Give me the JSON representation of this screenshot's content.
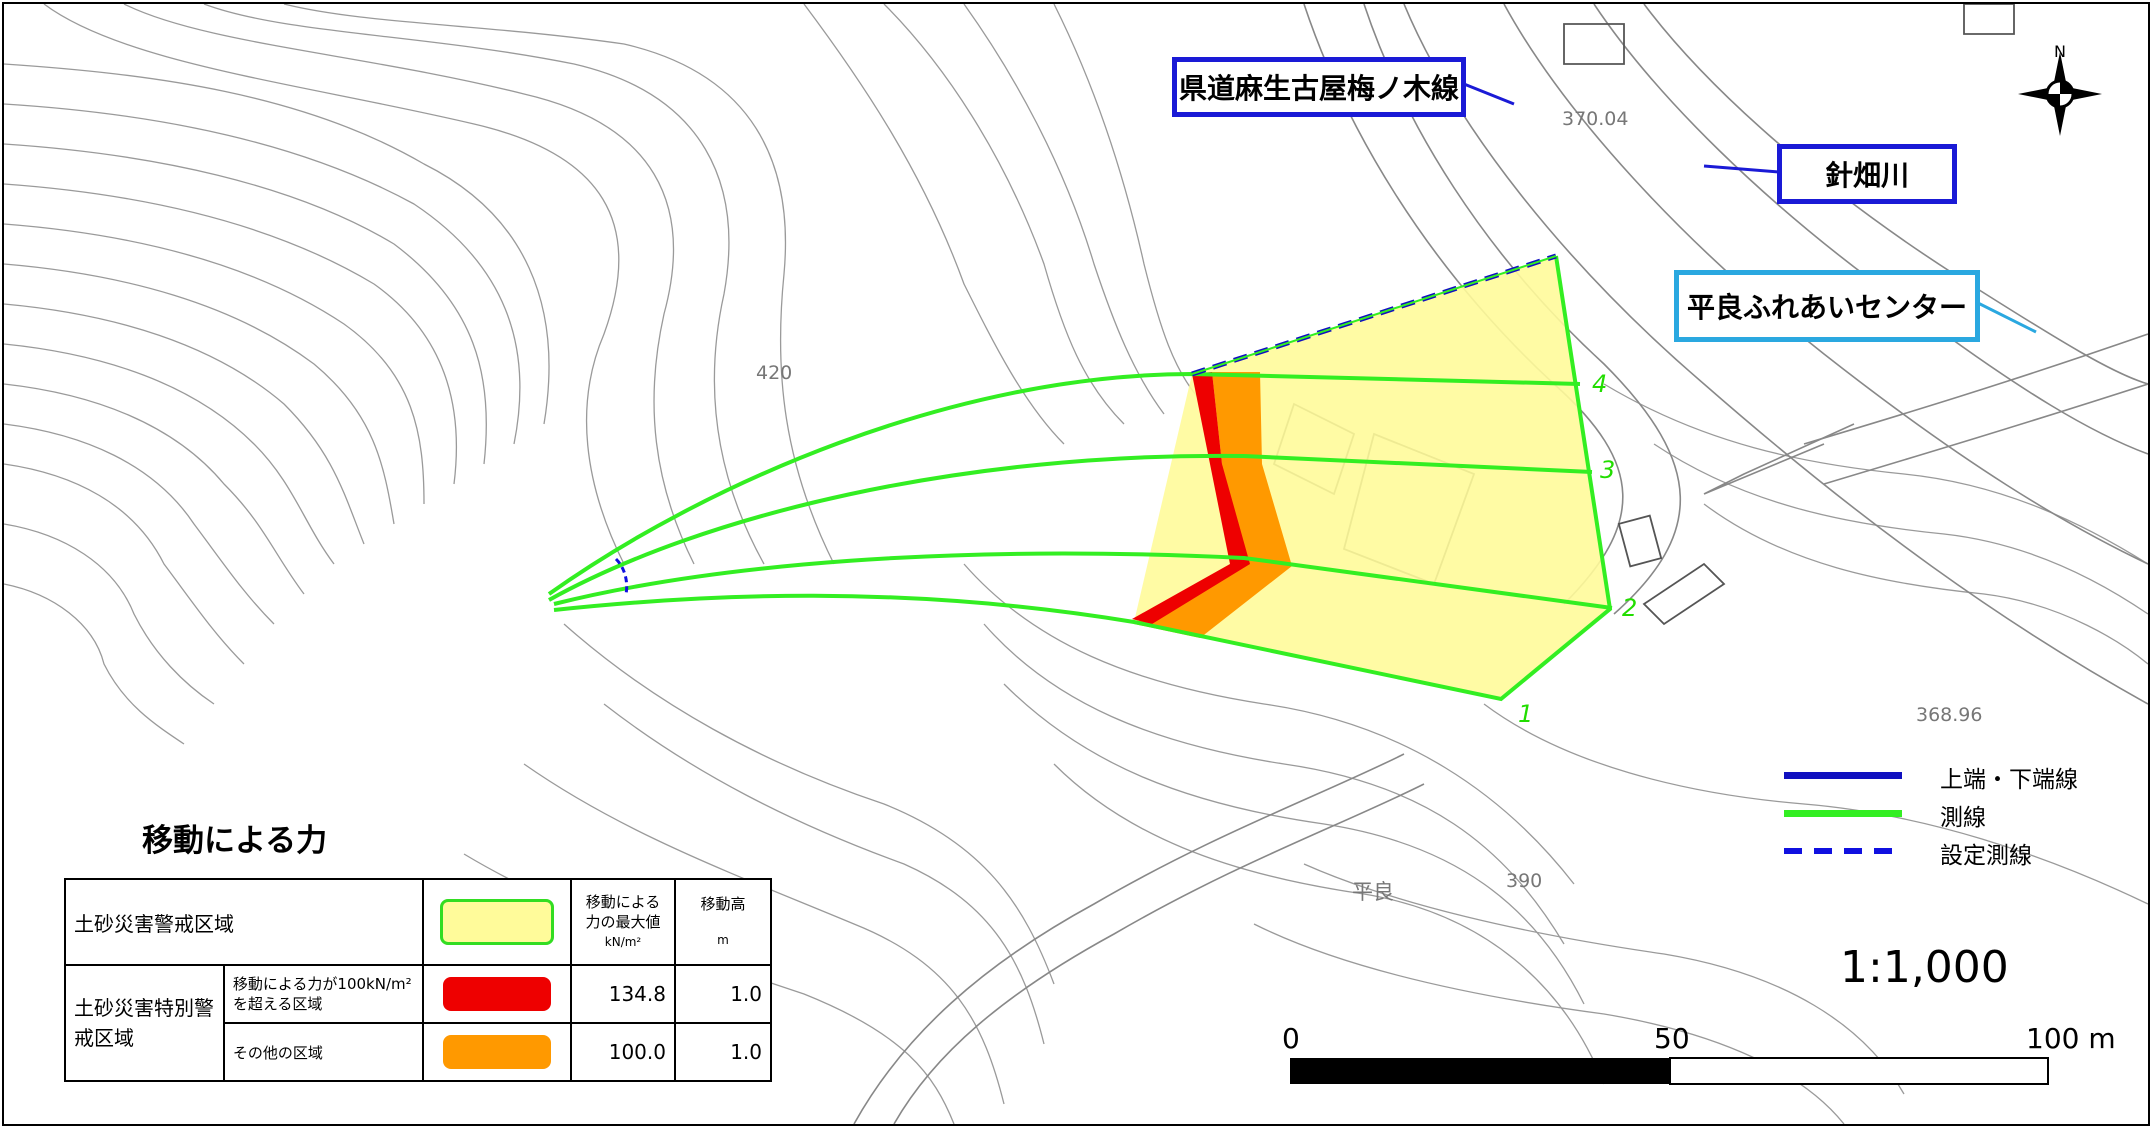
{
  "labels": {
    "road": "県道麻生古屋梅ノ木線",
    "river": "針畑川",
    "center": "平良ふれあいセンター",
    "place": "平良",
    "north": "N"
  },
  "map_text": {
    "elev_370": "370.04",
    "elev_368": "368.96",
    "contour_420": "420",
    "contour_390": "390"
  },
  "sections": [
    "1",
    "2",
    "3",
    "4"
  ],
  "force_title": "移動による力",
  "legend_table": {
    "head_force": "移動による力の最大値",
    "head_unit": "kN/m²",
    "head_height": "移動高",
    "head_height_unit": "m",
    "zone_warning": "土砂災害警戒区域",
    "zone_special": "土砂災害特別警戒区域",
    "sub_exceed": "移動による力が100kN/m²を超える区域",
    "sub_other": "その他の区域",
    "exceed_force": "134.8",
    "exceed_height": "1.0",
    "other_force": "100.0",
    "other_height": "1.0",
    "colors": {
      "warning": "#fffb9a",
      "warning_border": "#33dd22",
      "exceed": "#ee0000",
      "other": "#ff9900"
    }
  },
  "line_legend": {
    "top_bottom": "上端・下端線",
    "survey": "測線",
    "set_survey": "設定測線",
    "colors": {
      "top_bottom": "#1010c0",
      "survey": "#33ee22",
      "set_survey": "#1010e0"
    }
  },
  "scale": {
    "ratio": "1:1,000",
    "tick_0": "0",
    "tick_50": "50",
    "tick_100": "100 m"
  }
}
